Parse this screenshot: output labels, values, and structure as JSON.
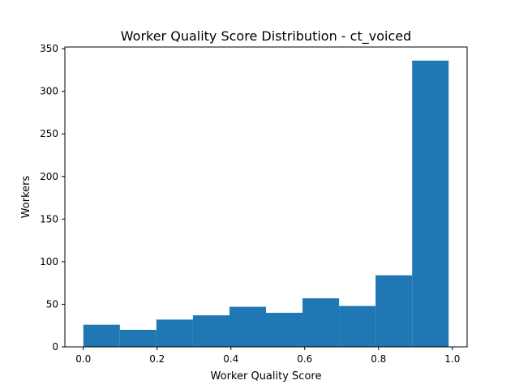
{
  "chart_data": {
    "type": "bar",
    "title": "Worker Quality Score Distribution - ct_voiced",
    "xlabel": "Worker Quality Score",
    "ylabel": "Workers",
    "bins": [
      {
        "x0": 0.0,
        "x1": 0.099,
        "value": 26
      },
      {
        "x0": 0.099,
        "x1": 0.198,
        "value": 20
      },
      {
        "x0": 0.198,
        "x1": 0.297,
        "value": 32
      },
      {
        "x0": 0.297,
        "x1": 0.396,
        "value": 37
      },
      {
        "x0": 0.396,
        "x1": 0.495,
        "value": 47
      },
      {
        "x0": 0.495,
        "x1": 0.594,
        "value": 40
      },
      {
        "x0": 0.594,
        "x1": 0.693,
        "value": 57
      },
      {
        "x0": 0.693,
        "x1": 0.792,
        "value": 48
      },
      {
        "x0": 0.792,
        "x1": 0.891,
        "value": 84
      },
      {
        "x0": 0.891,
        "x1": 0.99,
        "value": 336
      }
    ],
    "xlim": [
      -0.05,
      1.04
    ],
    "ylim": [
      0,
      352
    ],
    "xticks": [
      {
        "value": 0.0,
        "label": "0.0"
      },
      {
        "value": 0.2,
        "label": "0.2"
      },
      {
        "value": 0.4,
        "label": "0.4"
      },
      {
        "value": 0.6,
        "label": "0.6"
      },
      {
        "value": 0.8,
        "label": "0.8"
      },
      {
        "value": 1.0,
        "label": "1.0"
      }
    ],
    "yticks": [
      {
        "value": 0,
        "label": "0"
      },
      {
        "value": 50,
        "label": "50"
      },
      {
        "value": 100,
        "label": "100"
      },
      {
        "value": 150,
        "label": "150"
      },
      {
        "value": 200,
        "label": "200"
      },
      {
        "value": 250,
        "label": "250"
      },
      {
        "value": 300,
        "label": "300"
      },
      {
        "value": 350,
        "label": "350"
      }
    ],
    "bar_color": "#1f77b4",
    "grid": false,
    "legend": "none"
  }
}
